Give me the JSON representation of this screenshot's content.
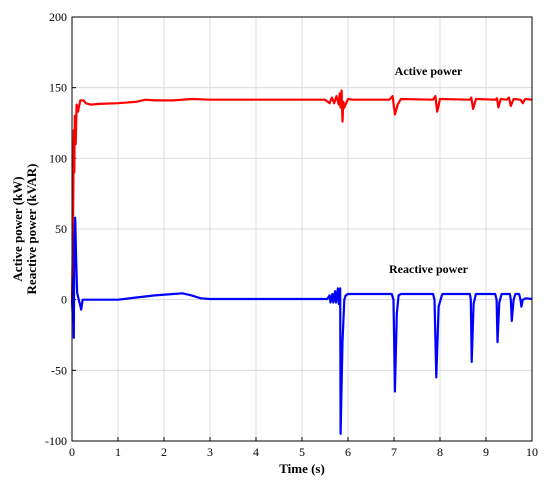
{
  "chart_data": {
    "type": "line",
    "title": "",
    "xlabel": "Time (s)",
    "ylabel_lines": [
      "Active power (kW)",
      "Reactive power (kVAR)"
    ],
    "xlim": [
      0,
      10
    ],
    "ylim": [
      -100,
      200
    ],
    "xticks": [
      "0",
      "1",
      "2",
      "3",
      "4",
      "5",
      "6",
      "7",
      "8",
      "9",
      "10"
    ],
    "yticks": [
      "-100",
      "-50",
      "0",
      "50",
      "100",
      "150",
      "200"
    ],
    "grid": true,
    "annotations": [
      {
        "text": "Active power",
        "series": "Active power",
        "x": 7.75,
        "y": 159
      },
      {
        "text": "Reactive power",
        "series": "Reactive power",
        "x": 7.75,
        "y": 19
      }
    ],
    "series": [
      {
        "name": "Active power",
        "color": "#ff0000",
        "points": [
          [
            0,
            0
          ],
          [
            0.02,
            40
          ],
          [
            0.04,
            120
          ],
          [
            0.05,
            90
          ],
          [
            0.06,
            130
          ],
          [
            0.08,
            110
          ],
          [
            0.1,
            138
          ],
          [
            0.13,
            133
          ],
          [
            0.18,
            141
          ],
          [
            0.25,
            141
          ],
          [
            0.3,
            139
          ],
          [
            0.4,
            138
          ],
          [
            0.6,
            138.5
          ],
          [
            1.0,
            139
          ],
          [
            1.4,
            140
          ],
          [
            1.6,
            141.5
          ],
          [
            1.8,
            141
          ],
          [
            2.2,
            141
          ],
          [
            2.6,
            142
          ],
          [
            3.0,
            141.5
          ],
          [
            4.0,
            141.5
          ],
          [
            5.0,
            141.5
          ],
          [
            5.5,
            141.5
          ],
          [
            5.6,
            139
          ],
          [
            5.65,
            143
          ],
          [
            5.7,
            139
          ],
          [
            5.75,
            144
          ],
          [
            5.8,
            138
          ],
          [
            5.82,
            146
          ],
          [
            5.84,
            136
          ],
          [
            5.86,
            148
          ],
          [
            5.88,
            126
          ],
          [
            5.9,
            140
          ],
          [
            5.92,
            136
          ],
          [
            6.0,
            142
          ],
          [
            6.1,
            141.5
          ],
          [
            6.9,
            141.5
          ],
          [
            6.97,
            144
          ],
          [
            7.02,
            131
          ],
          [
            7.08,
            138
          ],
          [
            7.15,
            142
          ],
          [
            7.85,
            141.5
          ],
          [
            7.9,
            144
          ],
          [
            7.94,
            133
          ],
          [
            8.0,
            142
          ],
          [
            8.65,
            141.5
          ],
          [
            8.68,
            143
          ],
          [
            8.72,
            135
          ],
          [
            8.78,
            142
          ],
          [
            9.2,
            141.5
          ],
          [
            9.24,
            142.5
          ],
          [
            9.27,
            136
          ],
          [
            9.32,
            142
          ],
          [
            9.45,
            141.5
          ],
          [
            9.5,
            143
          ],
          [
            9.54,
            137
          ],
          [
            9.6,
            142
          ],
          [
            9.75,
            141.5
          ],
          [
            9.8,
            139
          ],
          [
            9.85,
            142
          ],
          [
            10.0,
            141.5
          ]
        ]
      },
      {
        "name": "Reactive power",
        "color": "#0000ff",
        "points": [
          [
            0,
            0
          ],
          [
            0.02,
            -15
          ],
          [
            0.03,
            15
          ],
          [
            0.04,
            -27
          ],
          [
            0.05,
            40
          ],
          [
            0.07,
            58
          ],
          [
            0.09,
            30
          ],
          [
            0.11,
            5
          ],
          [
            0.14,
            1
          ],
          [
            0.17,
            -3
          ],
          [
            0.2,
            -7
          ],
          [
            0.23,
            0
          ],
          [
            0.3,
            0
          ],
          [
            0.5,
            0
          ],
          [
            1.0,
            0
          ],
          [
            1.4,
            1.5
          ],
          [
            1.8,
            3
          ],
          [
            2.2,
            4
          ],
          [
            2.4,
            4.5
          ],
          [
            2.6,
            3
          ],
          [
            2.8,
            1
          ],
          [
            3.0,
            0.5
          ],
          [
            4.0,
            0.5
          ],
          [
            5.0,
            0.5
          ],
          [
            5.55,
            0.5
          ],
          [
            5.6,
            3
          ],
          [
            5.62,
            -2
          ],
          [
            5.66,
            4
          ],
          [
            5.68,
            -2
          ],
          [
            5.72,
            6
          ],
          [
            5.74,
            -2
          ],
          [
            5.78,
            8
          ],
          [
            5.8,
            -3
          ],
          [
            5.83,
            8
          ],
          [
            5.84,
            -95
          ],
          [
            5.88,
            -30
          ],
          [
            5.92,
            0
          ],
          [
            5.95,
            3
          ],
          [
            6.0,
            4
          ],
          [
            6.5,
            4
          ],
          [
            6.95,
            4
          ],
          [
            6.99,
            0
          ],
          [
            7.02,
            -65
          ],
          [
            7.06,
            -10
          ],
          [
            7.1,
            3
          ],
          [
            7.15,
            4
          ],
          [
            7.85,
            4
          ],
          [
            7.88,
            0
          ],
          [
            7.92,
            -55
          ],
          [
            7.97,
            -5
          ],
          [
            8.05,
            4
          ],
          [
            8.65,
            4
          ],
          [
            8.67,
            0
          ],
          [
            8.69,
            -44
          ],
          [
            8.73,
            -3
          ],
          [
            8.78,
            4
          ],
          [
            9.2,
            4
          ],
          [
            9.23,
            0
          ],
          [
            9.25,
            -30
          ],
          [
            9.29,
            -2
          ],
          [
            9.34,
            4
          ],
          [
            9.52,
            4
          ],
          [
            9.54,
            0
          ],
          [
            9.56,
            -15
          ],
          [
            9.6,
            0
          ],
          [
            9.64,
            4
          ],
          [
            9.72,
            4
          ],
          [
            9.75,
            0
          ],
          [
            9.77,
            -5
          ],
          [
            9.8,
            0
          ],
          [
            9.87,
            1
          ],
          [
            10.0,
            0.5
          ]
        ]
      }
    ]
  }
}
